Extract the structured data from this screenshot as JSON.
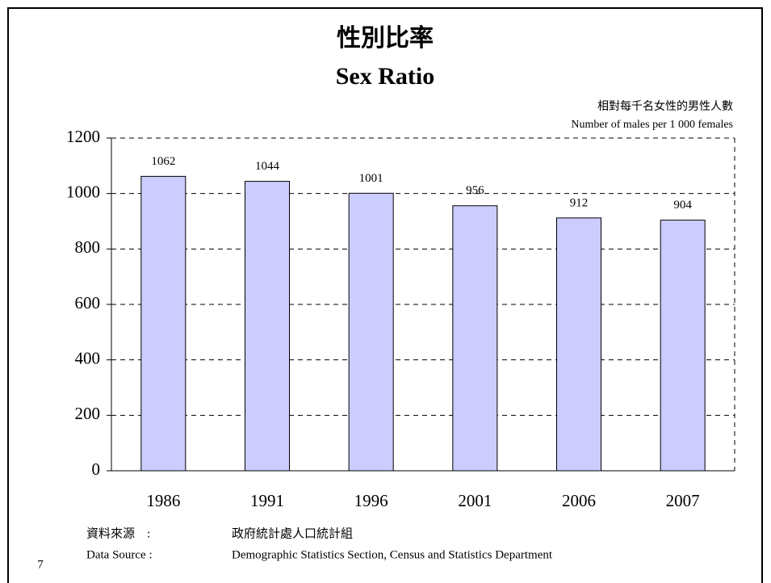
{
  "chart_data": {
    "type": "bar",
    "title": "性別比率",
    "title_en": "Sex Ratio",
    "unit_label_zh": "相對每千名女性的男性人數",
    "unit_label_en": "Number of males per 1 000 females",
    "categories": [
      "1986",
      "1991",
      "1996",
      "2001",
      "2006",
      "2007"
    ],
    "values": [
      1062,
      1044,
      1001,
      956,
      912,
      904
    ],
    "color": "#ccccff",
    "ylim": [
      0,
      1200
    ],
    "yticks": [
      0,
      200,
      400,
      600,
      800,
      1000,
      1200
    ],
    "grid": true,
    "source_label_zh": "資料來源　:",
    "source_label_en": "Data Source :",
    "source_zh": "政府統計處人口統計組",
    "source_en": "Demographic Statistics Section, Census and Statistics Department"
  },
  "page_number": "7"
}
